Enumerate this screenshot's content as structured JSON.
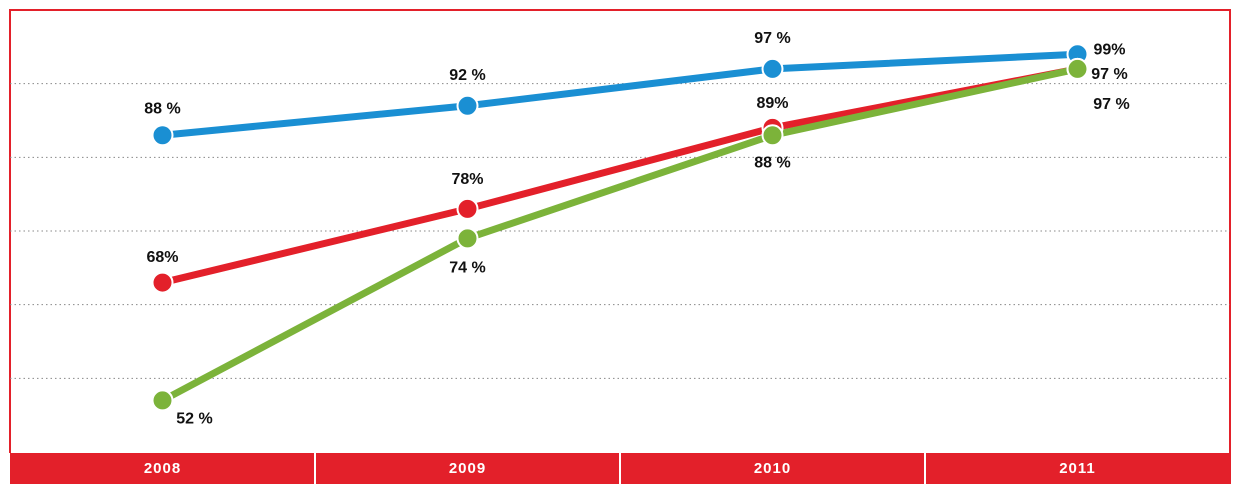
{
  "chart_data": {
    "type": "line",
    "categories": [
      "2008",
      "2009",
      "2010",
      "2011"
    ],
    "series": [
      {
        "color": "#1a8fd3",
        "values": [
          88,
          92,
          97,
          99
        ],
        "value_labels": [
          "88 %",
          "92 %",
          "97 %",
          "99%"
        ]
      },
      {
        "color": "#e3202a",
        "values": [
          68,
          78,
          89,
          97
        ],
        "value_labels": [
          "68%",
          "78%",
          "89%",
          "97 %"
        ]
      },
      {
        "color": "#7cb33a",
        "values": [
          52,
          74,
          88,
          97
        ],
        "value_labels": [
          "52 %",
          "74 %",
          "88 %",
          "97 %"
        ]
      }
    ],
    "ylim": [
      45,
      105
    ],
    "yticks": [
      55,
      65,
      75,
      85,
      95
    ],
    "grid": true
  }
}
